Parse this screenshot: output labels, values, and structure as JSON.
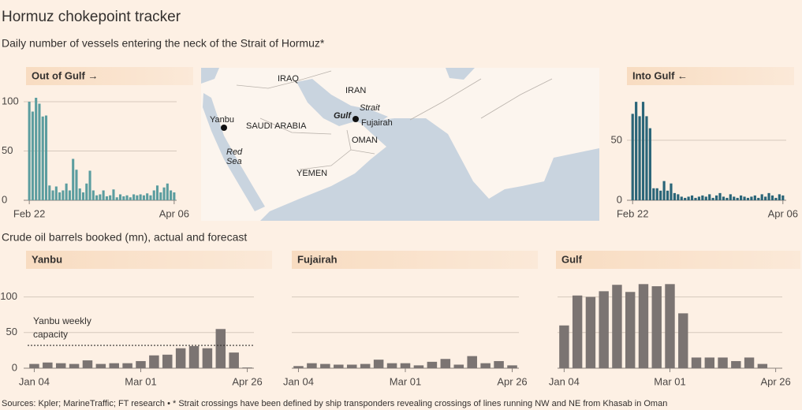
{
  "title": "Hormuz chokepoint tracker",
  "subtitle": "Daily number of vessels entering the neck of the Strait of Hormuz*",
  "section_title": "Crude oil barrels booked (mn), actual and forecast",
  "source": "Sources: Kpler; MarineTraffic; FT research • * Strait crossings have been defined by ship transponders revealing crossings of lines running NW and NE from Khasab in Oman",
  "map": {
    "labels": [
      "IRAQ",
      "IRAN",
      "Strait",
      "Gulf",
      "Fujairah",
      "Yanbu",
      "SAUDI ARABIA",
      "OMAN",
      "Red",
      "Sea",
      "YEMEN"
    ]
  },
  "chart_data": [
    {
      "type": "bar",
      "title": "Out of Gulf →",
      "categories": [
        "Feb 22",
        null,
        null,
        null,
        null,
        null,
        null,
        null,
        null,
        null,
        null,
        null,
        null,
        null,
        null,
        null,
        null,
        null,
        null,
        null,
        null,
        null,
        null,
        null,
        null,
        null,
        null,
        null,
        null,
        null,
        null,
        null,
        null,
        null,
        null,
        null,
        null,
        null,
        null,
        null,
        null,
        null,
        null,
        "Apr 06"
      ],
      "values": [
        100,
        90,
        104,
        98,
        85,
        86,
        15,
        10,
        14,
        8,
        10,
        17,
        10,
        42,
        31,
        12,
        8,
        17,
        30,
        10,
        5,
        6,
        10,
        4,
        5,
        11,
        3,
        6,
        4,
        5,
        3,
        6,
        5,
        6,
        5,
        7,
        5,
        10,
        15,
        8,
        13,
        17,
        10,
        8
      ],
      "color": "#5b9d9f",
      "ylim": [
        0,
        108
      ],
      "yticks": [
        0,
        50,
        100
      ],
      "grid": true
    },
    {
      "type": "bar",
      "title": "Into Gulf ←",
      "categories": [
        "Feb 22",
        null,
        null,
        null,
        null,
        null,
        null,
        null,
        null,
        null,
        null,
        null,
        null,
        null,
        null,
        null,
        null,
        null,
        null,
        null,
        null,
        null,
        null,
        null,
        null,
        null,
        null,
        null,
        null,
        null,
        null,
        null,
        null,
        null,
        null,
        null,
        null,
        null,
        null,
        null,
        null,
        null,
        null,
        "Apr 06"
      ],
      "values": [
        72,
        82,
        70,
        82,
        70,
        60,
        10,
        10,
        8,
        16,
        8,
        14,
        6,
        5,
        3,
        2,
        3,
        4,
        2,
        3,
        4,
        3,
        5,
        2,
        4,
        6,
        3,
        2,
        5,
        3,
        2,
        4,
        3,
        2,
        3,
        4,
        2,
        5,
        3,
        6,
        4,
        2,
        5,
        4
      ],
      "color": "#2a6578",
      "ylim": [
        0,
        88
      ],
      "yticks": [
        0,
        50
      ],
      "grid": true
    },
    {
      "type": "bar",
      "title": "Yanbu",
      "categories": [
        "Jan 04",
        null,
        null,
        null,
        null,
        null,
        null,
        null,
        "Mar 01",
        null,
        null,
        null,
        null,
        null,
        null,
        null,
        "Apr 26"
      ],
      "values": [
        6,
        8,
        7,
        6,
        11,
        6,
        7,
        7,
        10,
        18,
        19,
        28,
        31,
        28,
        55,
        22,
        1
      ],
      "color": "#7b7472",
      "ylim": [
        0,
        125
      ],
      "yticks": [
        0,
        50,
        100
      ],
      "grid": true,
      "annotation": {
        "lines": [
          "Yanbu weekly",
          "capacity"
        ],
        "value": 32
      }
    },
    {
      "type": "bar",
      "title": "Fujairah",
      "categories": [
        "Jan 04",
        null,
        null,
        null,
        null,
        null,
        null,
        null,
        "Mar 01",
        null,
        null,
        null,
        null,
        null,
        null,
        null,
        "Apr 26"
      ],
      "values": [
        3,
        7,
        6,
        5,
        5,
        6,
        12,
        7,
        7,
        4,
        9,
        13,
        5,
        17,
        7,
        10,
        4
      ],
      "color": "#7b7472",
      "ylim": [
        0,
        125
      ],
      "yticks": [
        0,
        50,
        100
      ],
      "grid": true,
      "show_ytick_labels": false
    },
    {
      "type": "bar",
      "title": "Gulf",
      "categories": [
        "Jan 04",
        null,
        null,
        null,
        null,
        null,
        null,
        null,
        "Mar 01",
        null,
        null,
        null,
        null,
        null,
        null,
        null,
        "Apr 26"
      ],
      "values": [
        60,
        102,
        100,
        108,
        117,
        107,
        118,
        115,
        118,
        77,
        15,
        15,
        15,
        10,
        15,
        6,
        0
      ],
      "color": "#7b7472",
      "ylim": [
        0,
        125
      ],
      "yticks": [
        0,
        50,
        100
      ],
      "grid": true,
      "show_ytick_labels": false
    }
  ]
}
